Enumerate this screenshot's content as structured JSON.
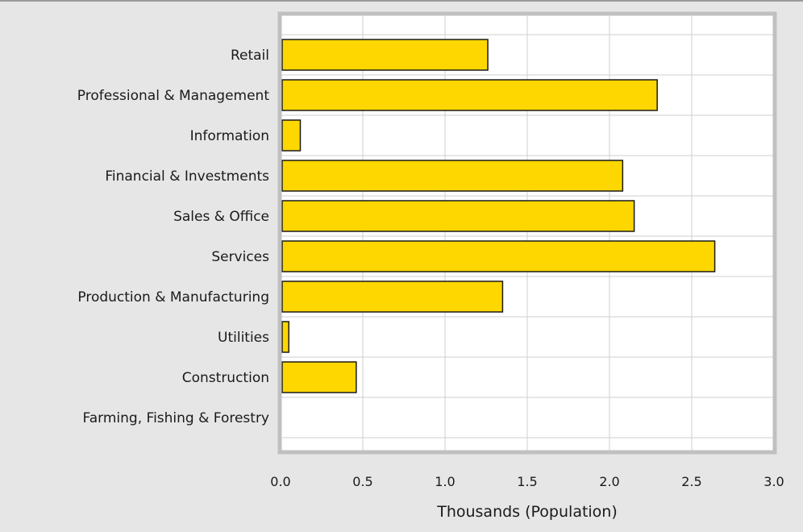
{
  "chart_data": {
    "type": "bar",
    "orientation": "horizontal",
    "categories": [
      "Retail",
      "Professional & Management",
      "Information",
      "Financial & Investments",
      "Sales & Office",
      "Services",
      "Production & Manufacturing",
      "Utilities",
      "Construction",
      "Farming, Fishing & Forestry"
    ],
    "values": [
      1.26,
      2.29,
      0.12,
      2.08,
      2.15,
      2.64,
      1.35,
      0.05,
      0.46,
      0
    ],
    "xlabel": "Thousands (Population)",
    "ylabel": "",
    "xlim": [
      0,
      3
    ],
    "xticks": [
      "0.0",
      "0.5",
      "1.0",
      "1.5",
      "2.0",
      "2.5",
      "3.0"
    ],
    "grid": true,
    "legend": "none",
    "colors": {
      "bar_fill": "#FFD700",
      "bar_stroke": "#1a1a1a",
      "plot_background": "#ffffff",
      "page_background": "#e6e6e6",
      "frame": "#c0c0c0",
      "grid": "#cfcfcf",
      "text": "#1a1a1a"
    }
  }
}
